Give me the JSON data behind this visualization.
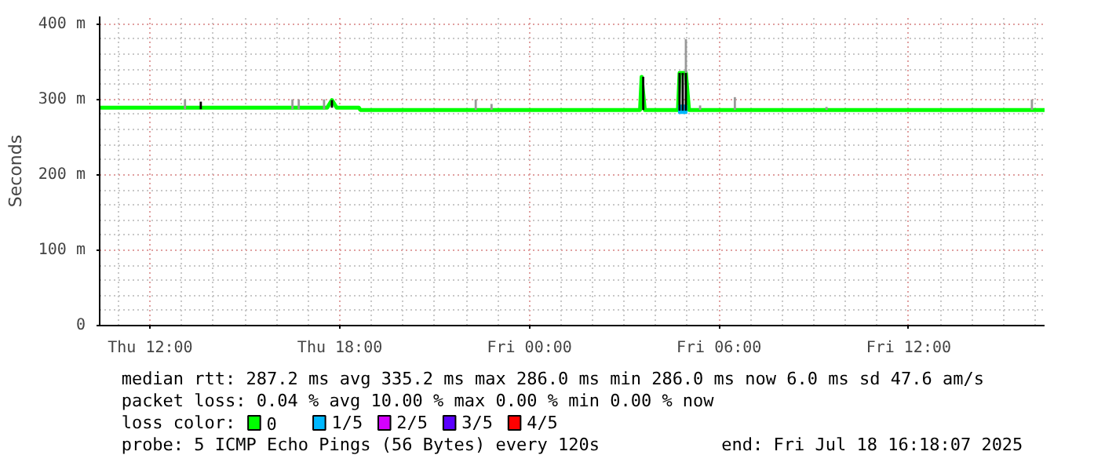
{
  "chart_data": {
    "type": "line",
    "ylabel": "Seconds",
    "xlim": [
      "2025-07-17T10:24",
      "2025-07-18T16:18"
    ],
    "xticks": [
      {
        "value": "2025-07-17T12:00",
        "label": "Thu 12:00"
      },
      {
        "value": "2025-07-17T18:00",
        "label": "Thu 18:00"
      },
      {
        "value": "2025-07-18T00:00",
        "label": "Fri 00:00"
      },
      {
        "value": "2025-07-18T06:00",
        "label": "Fri 06:00"
      },
      {
        "value": "2025-07-18T12:00",
        "label": "Fri 12:00"
      }
    ],
    "ylim": [
      0,
      410
    ],
    "yticks": [
      0,
      {
        "value": 100,
        "label": "100 m"
      },
      {
        "value": 200,
        "label": "200 m"
      },
      {
        "value": 300,
        "label": "300 m"
      },
      {
        "value": 400,
        "label": "400 m"
      }
    ],
    "grid": true,
    "legend": "bottom",
    "legend_title": "loss color:",
    "series": [
      {
        "type": "bar",
        "color": "#999999",
        "x": [
          "2025-07-17T13:06",
          "2025-07-17T16:30",
          "2025-07-17T16:42",
          "2025-07-17T17:30",
          "2025-07-17T22:18",
          "2025-07-17T22:48",
          "2025-07-18T04:57",
          "2025-07-18T05:24",
          "2025-07-18T06:30",
          "2025-07-18T09:24",
          "2025-07-18T15:54"
        ],
        "base": [
          287,
          287,
          287,
          287,
          286,
          286,
          335,
          286,
          286,
          286,
          286
        ],
        "values": [
          13,
          13,
          13,
          13,
          14,
          8,
          45,
          6,
          17,
          4,
          14
        ]
      },
      {
        "type": "bar",
        "color": "#000000",
        "x": [
          "2025-07-17T13:36",
          "2025-07-17T17:45",
          "2025-07-18T03:36",
          "2025-07-18T04:45",
          "2025-07-18T04:51",
          "2025-07-18T04:57"
        ],
        "base": [
          287,
          289,
          286,
          285,
          285,
          285
        ],
        "values": [
          10,
          10,
          44,
          50,
          50,
          50
        ]
      },
      {
        "name": "0",
        "color": "#00ff00",
        "x": [
          "2025-07-17T10:24",
          "2025-07-17T17:36",
          "2025-07-17T17:45",
          "2025-07-17T17:54",
          "2025-07-17T18:36",
          "2025-07-17T18:39",
          "2025-07-18T03:30",
          "2025-07-18T03:33",
          "2025-07-18T03:39",
          "2025-07-18T04:42",
          "2025-07-18T04:45",
          "2025-07-18T04:57",
          "2025-07-18T05:03",
          "2025-07-18T16:18"
        ],
        "values": [
          289,
          289,
          299,
          289,
          289,
          286,
          286,
          330,
          286,
          286,
          335,
          335,
          286,
          286
        ]
      },
      {
        "name": "1/5",
        "type": "scatter",
        "marker": "square",
        "color": "#00b8ff",
        "x": [
          "2025-07-18T04:51"
        ],
        "values": [
          287
        ]
      },
      {
        "name": "2/5",
        "type": "scatter",
        "marker": "square",
        "color": "#d400ff"
      },
      {
        "name": "3/5",
        "type": "scatter",
        "marker": "square",
        "color": "#5a00ff"
      },
      {
        "name": "4/5",
        "type": "scatter",
        "marker": "square",
        "color": "#ff0000"
      }
    ],
    "annotations": [
      "median rtt:  287.2 ms avg  335.2 ms max  286.0 ms min  286.0 ms now  6.0 ms sd  47.6   am/s",
      "packet loss: 0.04 % avg  10.00 % max  0.00 % min  0.00 % now",
      "probe:       5 ICMP Echo Pings (56 Bytes) every 120s",
      "end: Fri Jul 18 16:18:07 2025"
    ]
  }
}
